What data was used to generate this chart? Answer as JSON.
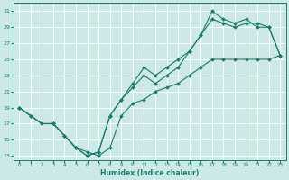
{
  "xlabel": "Humidex (Indice chaleur)",
  "bg_color": "#cce9e7",
  "grid_color": "#ffffff",
  "line_color": "#1a7a6e",
  "xlim": [
    -0.5,
    23.5
  ],
  "ylim": [
    12.5,
    32
  ],
  "xticks": [
    0,
    1,
    2,
    3,
    4,
    5,
    6,
    7,
    8,
    9,
    10,
    11,
    12,
    13,
    14,
    15,
    16,
    17,
    18,
    19,
    20,
    21,
    22,
    23
  ],
  "yticks": [
    13,
    15,
    17,
    19,
    21,
    23,
    25,
    27,
    29,
    31
  ],
  "line1_x": [
    0,
    1,
    2,
    3,
    4,
    5,
    6,
    7,
    8,
    9,
    10,
    11,
    12,
    13,
    14,
    15,
    16,
    17,
    18,
    19,
    20,
    21,
    22,
    23
  ],
  "line1_y": [
    19,
    18,
    17,
    17,
    15.5,
    14,
    13,
    13.5,
    18,
    20,
    22,
    24,
    23,
    24,
    25,
    26,
    28,
    30,
    29.5,
    29,
    29.5,
    29.5,
    29,
    25.5
  ],
  "line2_x": [
    0,
    1,
    2,
    3,
    4,
    5,
    6,
    7,
    8,
    9,
    10,
    11,
    12,
    13,
    14,
    15,
    16,
    17,
    18,
    19,
    20,
    21,
    22,
    23
  ],
  "line2_y": [
    19,
    18,
    17,
    17,
    15.5,
    14,
    13,
    13.5,
    18,
    20,
    21.5,
    23,
    22,
    23,
    24,
    26,
    28,
    31,
    30,
    29.5,
    30,
    29,
    29,
    25.5
  ],
  "line3_x": [
    0,
    2,
    3,
    4,
    5,
    6,
    7,
    8,
    9,
    10,
    11,
    12,
    13,
    14,
    15,
    16,
    17,
    18,
    19,
    20,
    21,
    22,
    23
  ],
  "line3_y": [
    19,
    17,
    17,
    15.5,
    14,
    13.5,
    13,
    14,
    18,
    19.5,
    20,
    21,
    21.5,
    22,
    23,
    24,
    25,
    25,
    25,
    25,
    25,
    25,
    25.5
  ]
}
